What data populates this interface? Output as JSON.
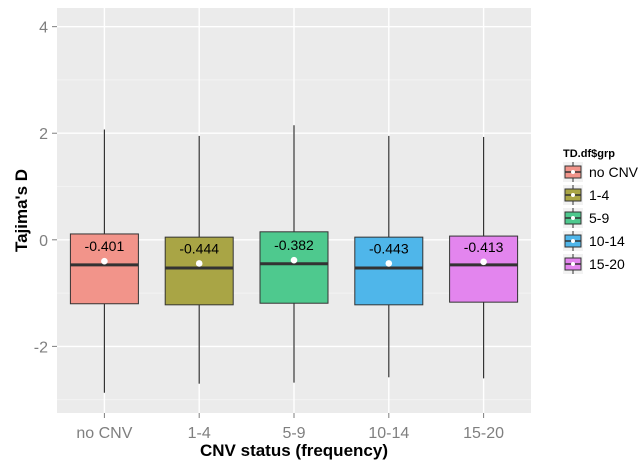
{
  "chart_data": {
    "type": "box",
    "title": "",
    "xlabel": "CNV status (frequency)",
    "ylabel": "Tajima's D",
    "ylim": [
      -3.25,
      4.35
    ],
    "yticks": [
      -2,
      0,
      2,
      4
    ],
    "grid": true,
    "legend": {
      "title": "TD.df$grp",
      "position": "right"
    },
    "categories": [
      "no CNV",
      "1-4",
      "5-9",
      "10-14",
      "15-20"
    ],
    "colors": [
      "#f2948a",
      "#a9a545",
      "#4ec98e",
      "#4fb6ea",
      "#e385ee"
    ],
    "series": [
      {
        "name": "no CNV",
        "whisker_low": -2.87,
        "q1": -1.2,
        "median": -0.47,
        "q3": 0.11,
        "whisker_high": 2.07,
        "mean": -0.401,
        "mean_label": "-0.401"
      },
      {
        "name": "1-4",
        "whisker_low": -2.7,
        "q1": -1.22,
        "median": -0.53,
        "q3": 0.05,
        "whisker_high": 1.95,
        "mean": -0.444,
        "mean_label": "-0.444"
      },
      {
        "name": "5-9",
        "whisker_low": -2.68,
        "q1": -1.19,
        "median": -0.45,
        "q3": 0.15,
        "whisker_high": 2.15,
        "mean": -0.382,
        "mean_label": "-0.382"
      },
      {
        "name": "10-14",
        "whisker_low": -2.58,
        "q1": -1.22,
        "median": -0.53,
        "q3": 0.05,
        "whisker_high": 1.95,
        "mean": -0.443,
        "mean_label": "-0.443"
      },
      {
        "name": "15-20",
        "whisker_low": -2.6,
        "q1": -1.17,
        "median": -0.47,
        "q3": 0.07,
        "whisker_high": 1.93,
        "mean": -0.413,
        "mean_label": "-0.413"
      }
    ]
  }
}
